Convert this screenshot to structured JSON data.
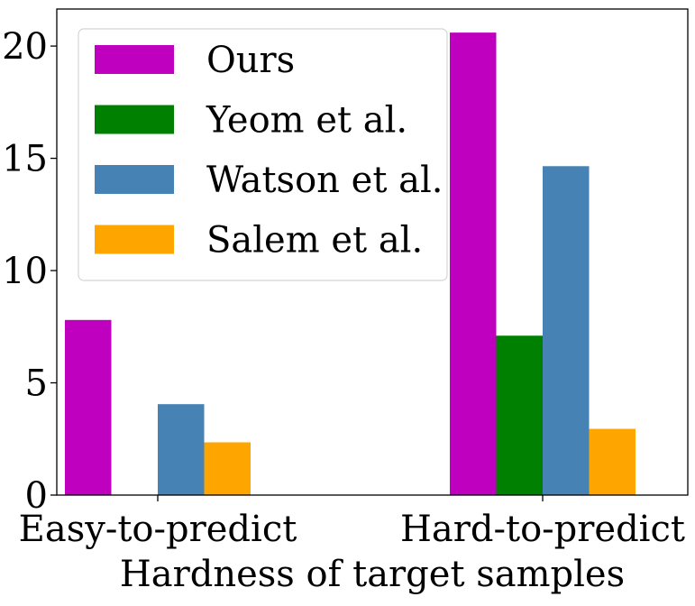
{
  "chart_data": {
    "type": "bar",
    "title": "",
    "xlabel": "Hardness of target samples",
    "ylabel": "",
    "categories": [
      "Easy-to-predict",
      "Hard-to-predict"
    ],
    "series": [
      {
        "name": "Ours",
        "color": "#bf00bf",
        "values": [
          7.8,
          20.6
        ]
      },
      {
        "name": "Yeom et al.",
        "color": "#008000",
        "values": [
          0,
          7.1
        ]
      },
      {
        "name": "Watson et al.",
        "color": "#4682b4",
        "values": [
          4.05,
          14.65
        ]
      },
      {
        "name": "Salem et al.",
        "color": "#ffa500",
        "values": [
          2.35,
          2.95
        ]
      }
    ],
    "ylim": [
      0,
      21.65
    ],
    "yticks": [
      0,
      5,
      10,
      15,
      20
    ],
    "ytick_labels": [
      "0",
      "5",
      "10",
      "15",
      "20"
    ],
    "grid": false,
    "legend_position": "top-left"
  }
}
